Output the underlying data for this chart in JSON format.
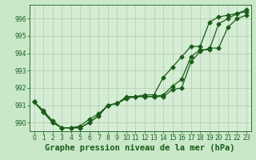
{
  "title": "Graphe pression niveau de la mer (hPa)",
  "background_color": "#c8e8c8",
  "plot_bg_color": "#d4edd4",
  "grid_color": "#b0c8b0",
  "line_color": "#1a5c1a",
  "tick_fontsize": 5.5,
  "xlabel_fontsize": 7.5,
  "xlim": [
    -0.5,
    23.5
  ],
  "ylim": [
    989.5,
    996.8
  ],
  "yticks": [
    990,
    991,
    992,
    993,
    994,
    995,
    996
  ],
  "xticks": [
    0,
    1,
    2,
    3,
    4,
    5,
    6,
    7,
    8,
    9,
    10,
    11,
    12,
    13,
    14,
    15,
    16,
    17,
    18,
    19,
    20,
    21,
    22,
    23
  ],
  "line1_x": [
    0,
    1,
    2,
    3,
    4,
    5,
    6,
    7,
    8,
    9,
    10,
    11,
    12,
    13,
    14,
    15,
    16,
    17,
    18,
    19,
    20,
    21,
    22,
    23
  ],
  "line1_y": [
    991.2,
    990.7,
    990.1,
    989.7,
    989.7,
    989.8,
    990.2,
    990.5,
    991.0,
    991.1,
    991.5,
    991.5,
    991.6,
    991.6,
    992.6,
    993.2,
    993.8,
    994.4,
    994.4,
    995.8,
    996.1,
    996.2,
    996.3,
    996.4
  ],
  "line2_x": [
    0,
    1,
    2,
    3,
    4,
    5,
    6,
    7,
    8,
    9,
    10,
    11,
    12,
    13,
    14,
    15,
    16,
    17,
    18,
    19,
    20,
    21,
    22,
    23
  ],
  "line2_y": [
    991.2,
    990.6,
    990.0,
    989.7,
    989.7,
    989.7,
    990.0,
    990.4,
    991.0,
    991.1,
    991.4,
    991.5,
    991.5,
    991.5,
    991.6,
    992.1,
    992.5,
    993.8,
    994.2,
    994.2,
    995.7,
    996.0,
    996.3,
    996.5
  ],
  "line3_x": [
    0,
    1,
    2,
    3,
    4,
    5,
    6,
    7,
    8,
    9,
    10,
    11,
    12,
    13,
    14,
    15,
    16,
    17,
    18,
    19,
    20,
    21,
    22,
    23
  ],
  "line3_y": [
    991.2,
    990.6,
    990.0,
    989.7,
    989.7,
    989.7,
    990.0,
    990.4,
    991.0,
    991.1,
    991.4,
    991.5,
    991.5,
    991.5,
    991.5,
    991.9,
    992.0,
    993.5,
    994.1,
    994.3,
    994.3,
    995.5,
    996.0,
    996.2
  ]
}
